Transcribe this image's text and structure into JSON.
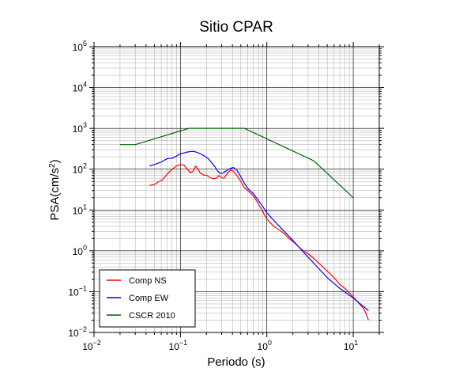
{
  "chart_data": {
    "type": "line",
    "title": "Sitio CPAR",
    "xlabel": "Periodo (s)",
    "ylabel": "PSA(cm/s²)",
    "ylabel_parts": {
      "base": "PSA(cm/s",
      "sup": "2",
      "end": ")"
    },
    "xscale": "log",
    "yscale": "log",
    "xlim": [
      0.01,
      20
    ],
    "ylim": [
      0.01,
      100000
    ],
    "x_ticks": [
      {
        "value": 0.01,
        "base": "10",
        "exp": "−2"
      },
      {
        "value": 0.1,
        "base": "10",
        "exp": "−1"
      },
      {
        "value": 1,
        "base": "10",
        "exp": "0"
      },
      {
        "value": 10,
        "base": "10",
        "exp": "1"
      }
    ],
    "y_ticks": [
      {
        "value": 0.01,
        "base": "10",
        "exp": "−2"
      },
      {
        "value": 0.1,
        "base": "10",
        "exp": "−1"
      },
      {
        "value": 1,
        "base": "10",
        "exp": "0"
      },
      {
        "value": 10,
        "base": "10",
        "exp": "1"
      },
      {
        "value": 100,
        "base": "10",
        "exp": "2"
      },
      {
        "value": 1000,
        "base": "10",
        "exp": "3"
      },
      {
        "value": 10000,
        "base": "10",
        "exp": "4"
      },
      {
        "value": 100000,
        "base": "10",
        "exp": "5"
      }
    ],
    "grid": true,
    "legend_position": "bottom-left",
    "series": [
      {
        "name": "Comp NS",
        "color": "#ff0000",
        "x": [
          0.044,
          0.05,
          0.055,
          0.062,
          0.07,
          0.08,
          0.09,
          0.1,
          0.11,
          0.12,
          0.13,
          0.14,
          0.15,
          0.16,
          0.17,
          0.18,
          0.19,
          0.2,
          0.22,
          0.24,
          0.26,
          0.28,
          0.3,
          0.32,
          0.35,
          0.38,
          0.41,
          0.45,
          0.5,
          0.55,
          0.6,
          0.7,
          0.8,
          0.9,
          1.0,
          1.2,
          1.4,
          1.6,
          1.8,
          2.0,
          2.5,
          3.0,
          3.5,
          4.0,
          5.0,
          6.0,
          7.0,
          8.0,
          10.0,
          12.0,
          13.0,
          14.0,
          15.0
        ],
        "y": [
          40,
          42,
          48,
          55,
          75,
          100,
          120,
          130,
          125,
          100,
          82,
          88,
          120,
          100,
          80,
          75,
          70,
          72,
          62,
          58,
          60,
          70,
          62,
          60,
          80,
          95,
          90,
          70,
          50,
          35,
          30,
          22,
          14,
          9,
          6,
          4,
          3.2,
          2.6,
          2.0,
          1.7,
          1.1,
          0.85,
          0.65,
          0.5,
          0.32,
          0.22,
          0.15,
          0.12,
          0.075,
          0.048,
          0.04,
          0.03,
          0.02
        ]
      },
      {
        "name": "Comp EW",
        "color": "#0000ff",
        "x": [
          0.044,
          0.05,
          0.06,
          0.07,
          0.08,
          0.09,
          0.1,
          0.11,
          0.12,
          0.13,
          0.14,
          0.15,
          0.17,
          0.19,
          0.21,
          0.23,
          0.25,
          0.27,
          0.29,
          0.31,
          0.33,
          0.35,
          0.38,
          0.41,
          0.45,
          0.5,
          0.55,
          0.6,
          0.7,
          0.8,
          0.9,
          1.0,
          1.2,
          1.5,
          2.0,
          3.0,
          5.0,
          7.0,
          10.0,
          15.0
        ],
        "y": [
          120,
          130,
          150,
          180,
          185,
          210,
          240,
          250,
          262,
          270,
          272,
          265,
          240,
          210,
          180,
          145,
          115,
          90,
          78,
          80,
          88,
          95,
          105,
          110,
          95,
          65,
          45,
          34,
          25,
          17,
          12,
          8.5,
          5.6,
          3.4,
          1.8,
          0.7,
          0.22,
          0.12,
          0.07,
          0.034
        ]
      },
      {
        "name": "CSCR 2010",
        "color": "#006400",
        "x": [
          0.02,
          0.03,
          0.125,
          0.55,
          3.5,
          10.0
        ],
        "y": [
          400,
          400,
          1000,
          1000,
          160,
          20
        ]
      }
    ]
  }
}
